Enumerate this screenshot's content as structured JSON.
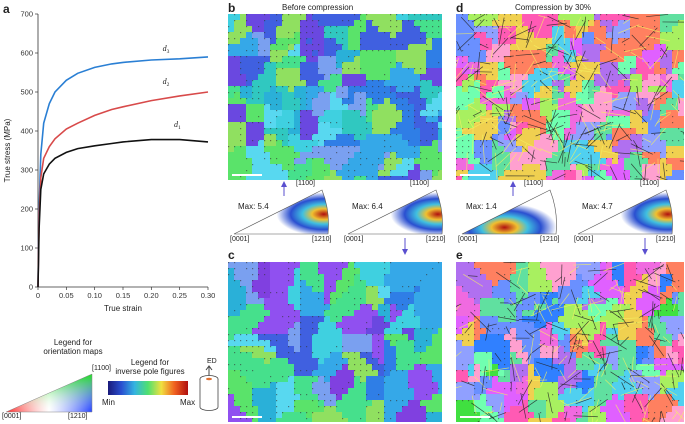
{
  "panel_a": {
    "label": "a",
    "chart_data": {
      "type": "line",
      "xlabel": "True strain",
      "ylabel": "True stress (MPa)",
      "xlim": [
        0,
        0.3
      ],
      "ylim": [
        0,
        700
      ],
      "x_ticks": [
        "0",
        "0.05",
        "0.10",
        "0.15",
        "0.20",
        "0.25",
        "0.30"
      ],
      "y_ticks": [
        "0",
        "100",
        "200",
        "300",
        "400",
        "500",
        "600",
        "700"
      ],
      "series": [
        {
          "name": "d3",
          "color": "#2a7fd4",
          "x": [
            0,
            0.002,
            0.005,
            0.01,
            0.02,
            0.03,
            0.05,
            0.07,
            0.1,
            0.13,
            0.15,
            0.2,
            0.25,
            0.3
          ],
          "y": [
            0,
            200,
            340,
            420,
            470,
            500,
            530,
            548,
            563,
            572,
            576,
            582,
            585,
            590
          ]
        },
        {
          "name": "d2",
          "color": "#d84a4a",
          "x": [
            0,
            0.002,
            0.005,
            0.01,
            0.02,
            0.03,
            0.05,
            0.07,
            0.1,
            0.13,
            0.15,
            0.2,
            0.25,
            0.3
          ],
          "y": [
            0,
            180,
            280,
            330,
            360,
            380,
            405,
            420,
            440,
            455,
            462,
            478,
            490,
            500
          ]
        },
        {
          "name": "d1",
          "color": "#111111",
          "x": [
            0,
            0.002,
            0.005,
            0.01,
            0.02,
            0.03,
            0.05,
            0.07,
            0.1,
            0.13,
            0.15,
            0.2,
            0.25,
            0.3
          ],
          "y": [
            0,
            150,
            250,
            290,
            315,
            330,
            345,
            355,
            362,
            368,
            372,
            378,
            378,
            372
          ]
        }
      ],
      "series_labels": [
        {
          "sym": "d",
          "sub": "3"
        },
        {
          "sym": "d",
          "sub": "2"
        },
        {
          "sym": "d",
          "sub": "1"
        }
      ]
    }
  },
  "panel_b": {
    "label": "b",
    "title": "Before compression"
  },
  "panel_c": {
    "label": "c"
  },
  "panel_d": {
    "label": "d",
    "title": "Compression by 30%"
  },
  "panel_e": {
    "label": "e"
  },
  "ipf_figures": [
    {
      "max": "Max: 5.4",
      "top": "[1100]",
      "left": "[0001]",
      "right": "[1210]",
      "hot": "edge"
    },
    {
      "max": "Max: 6.4",
      "top": "[1100]",
      "left": "[0001]",
      "right": "[1210]",
      "hot": "edge"
    },
    {
      "max": "Max: 1.4",
      "top": "[1100]",
      "left": "[0001]",
      "right": "[1210]",
      "hot": "center"
    },
    {
      "max": "Max: 4.7",
      "top": "[1100]",
      "left": "[0001]",
      "right": "[1210]",
      "hot": "edge"
    }
  ],
  "legend_orientation": {
    "title_line1": "Legend for",
    "title_line2": "orientation maps",
    "top": "[1100]",
    "left": "[0001]",
    "right": "[1210]"
  },
  "legend_ipf": {
    "title_line1": "Legend for",
    "title_line2": "inverse pole figures",
    "min": "Min",
    "max": "Max"
  },
  "ed_label": "ED"
}
